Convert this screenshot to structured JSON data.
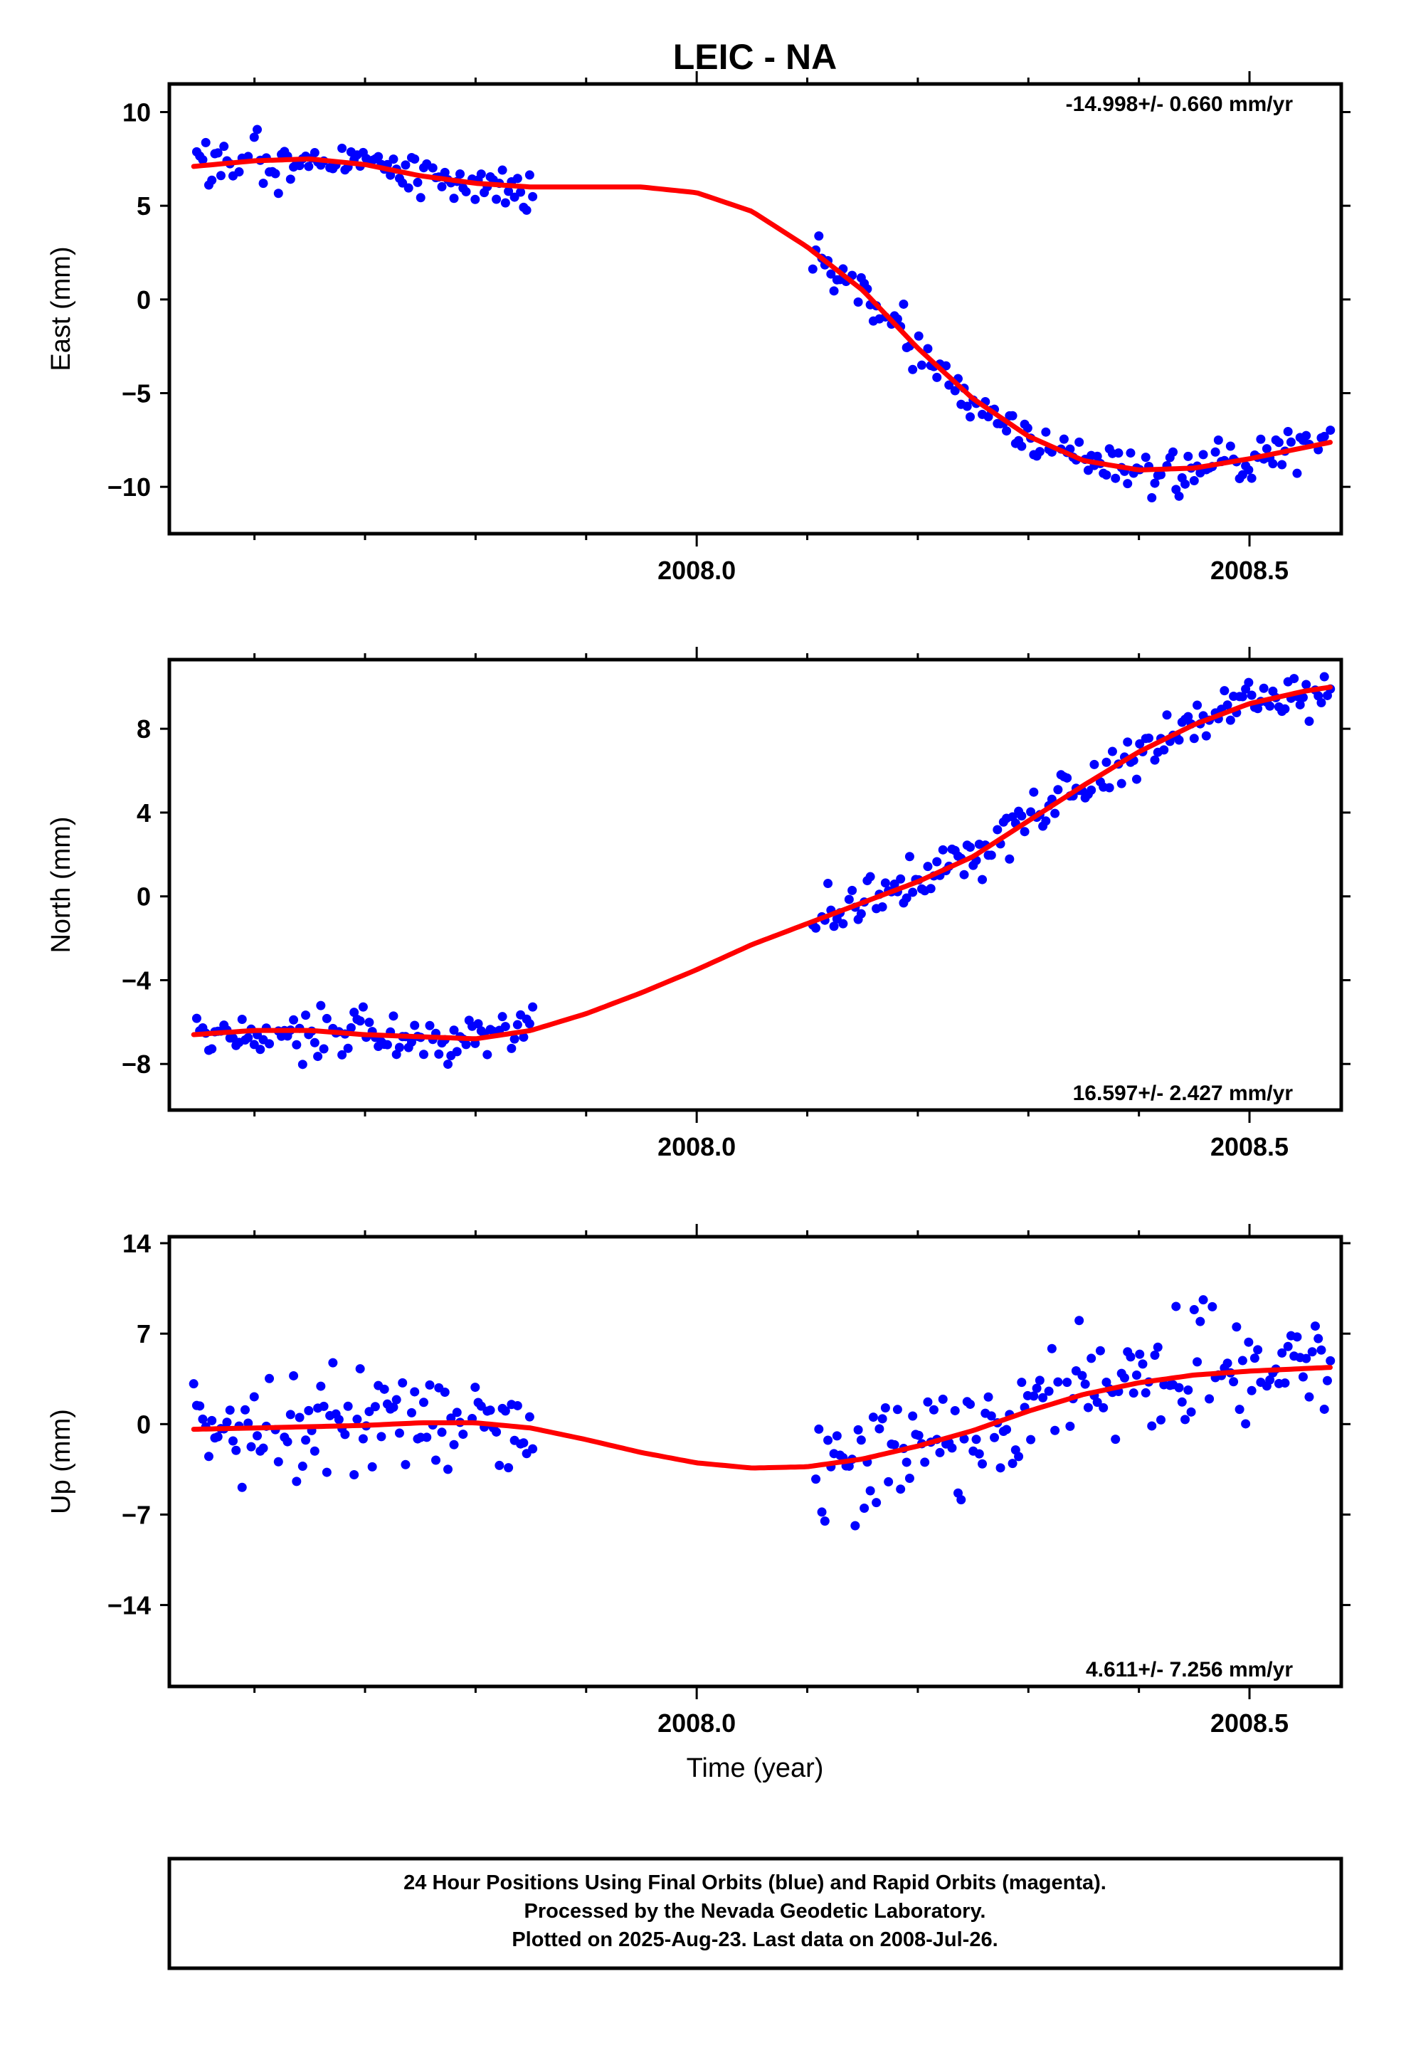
{
  "title": "LEIC - NA",
  "x_axis_label": "Time (year)",
  "footer_lines": [
    "24 Hour Positions Using Final Orbits (blue) and Rapid Orbits (magenta).",
    "Processed by the Nevada Geodetic Laboratory.",
    "Plotted on 2025-Aug-23. Last data on 2008-Jul-26."
  ],
  "colors": {
    "points": "#0000ff",
    "fit": "#ff0000",
    "frame": "#000000"
  },
  "chart_data": [
    {
      "type": "scatter",
      "component": "east",
      "ylabel": "East (mm)",
      "rate_text": "-14.998+/- 0.660 mm/yr",
      "rate_position": "top-right",
      "xlim": [
        2007.523,
        2008.583
      ],
      "ylim": [
        -12.5,
        11.5
      ],
      "x_ticks": [
        2008.0,
        2008.5
      ],
      "x_tick_labels": [
        "2008.0",
        "2008.5"
      ],
      "x_minor_ticks": [
        2007.6,
        2007.7,
        2007.8,
        2007.9,
        2008.1,
        2008.2,
        2008.3,
        2008.4
      ],
      "y_ticks": [
        10,
        5,
        0,
        -5,
        -10
      ],
      "y_tick_labels": [
        "10",
        "5",
        "0",
        "−5",
        "−10"
      ],
      "fit": {
        "x": [
          2007.545,
          2007.6,
          2007.65,
          2007.7,
          2007.75,
          2007.8,
          2007.85,
          2007.9,
          2007.95,
          2008.0,
          2008.05,
          2008.1,
          2008.15,
          2008.2,
          2008.25,
          2008.3,
          2008.35,
          2008.4,
          2008.45,
          2008.5,
          2008.55,
          2008.575
        ],
        "y": [
          7.1,
          7.4,
          7.5,
          7.2,
          6.6,
          6.2,
          6.0,
          6.0,
          6.0,
          5.7,
          4.7,
          2.8,
          0.5,
          -2.6,
          -5.3,
          -7.3,
          -8.6,
          -9.1,
          -9.0,
          -8.5,
          -7.9,
          -7.6
        ]
      },
      "trend": {
        "a": 7.0,
        "b": 0.3,
        "c": -9.6,
        "d": 0.3
      },
      "noise": 1.2
    },
    {
      "type": "scatter",
      "component": "north",
      "ylabel": "North (mm)",
      "rate_text": "16.597+/- 2.427 mm/yr",
      "rate_position": "bottom-right",
      "xlim": [
        2007.523,
        2008.583
      ],
      "ylim": [
        -10.2,
        11.3
      ],
      "x_ticks": [
        2008.0,
        2008.5
      ],
      "x_tick_labels": [
        "2008.0",
        "2008.5"
      ],
      "x_minor_ticks": [
        2007.6,
        2007.7,
        2007.8,
        2007.9,
        2008.1,
        2008.2,
        2008.3,
        2008.4
      ],
      "y_ticks": [
        8,
        4,
        0,
        -4,
        -8
      ],
      "y_tick_labels": [
        "8",
        "4",
        "0",
        "−4",
        "−8"
      ],
      "fit": {
        "x": [
          2007.545,
          2007.6,
          2007.65,
          2007.7,
          2007.75,
          2007.8,
          2007.85,
          2007.9,
          2007.95,
          2008.0,
          2008.05,
          2008.1,
          2008.15,
          2008.2,
          2008.25,
          2008.3,
          2008.35,
          2008.4,
          2008.45,
          2008.5,
          2008.55,
          2008.575
        ],
        "y": [
          -6.6,
          -6.4,
          -6.4,
          -6.6,
          -6.7,
          -6.8,
          -6.4,
          -5.6,
          -4.6,
          -3.5,
          -2.3,
          -1.3,
          -0.3,
          0.7,
          1.9,
          3.6,
          5.3,
          6.9,
          8.2,
          9.2,
          9.8,
          10.0
        ]
      },
      "trend": {
        "a": -6.6,
        "b": 0.0,
        "c": 0.0,
        "d": 0.0
      },
      "noise": 1.1
    },
    {
      "type": "scatter",
      "component": "up",
      "ylabel": "Up (mm)",
      "rate_text": "4.611+/- 7.256 mm/yr",
      "rate_position": "bottom-right",
      "xlim": [
        2007.523,
        2008.583
      ],
      "ylim": [
        -20.3,
        14.5
      ],
      "x_ticks": [
        2008.0,
        2008.5
      ],
      "x_tick_labels": [
        "2008.0",
        "2008.5"
      ],
      "x_minor_ticks": [
        2007.6,
        2007.7,
        2007.8,
        2007.9,
        2008.1,
        2008.2,
        2008.3,
        2008.4
      ],
      "y_ticks": [
        14,
        7,
        0,
        -7,
        -14
      ],
      "y_tick_labels": [
        "14",
        "7",
        "0",
        "−7",
        "−14"
      ],
      "fit": {
        "x": [
          2007.545,
          2007.6,
          2007.65,
          2007.7,
          2007.75,
          2007.8,
          2007.85,
          2007.9,
          2007.95,
          2008.0,
          2008.05,
          2008.1,
          2008.15,
          2008.2,
          2008.25,
          2008.3,
          2008.35,
          2008.4,
          2008.45,
          2008.5,
          2008.55,
          2008.575
        ],
        "y": [
          -0.4,
          -0.3,
          -0.2,
          -0.1,
          0.1,
          0.1,
          -0.3,
          -1.2,
          -2.2,
          -3.0,
          -3.4,
          -3.3,
          -2.7,
          -1.7,
          -0.5,
          1.0,
          2.3,
          3.2,
          3.8,
          4.1,
          4.3,
          4.4
        ]
      },
      "trend": {
        "a": 0,
        "b": 0,
        "c": 0,
        "d": 0
      },
      "noise": 4.2
    }
  ],
  "data_spans": [
    [
      2007.545,
      2007.852
    ],
    [
      2008.105,
      2008.575
    ]
  ]
}
